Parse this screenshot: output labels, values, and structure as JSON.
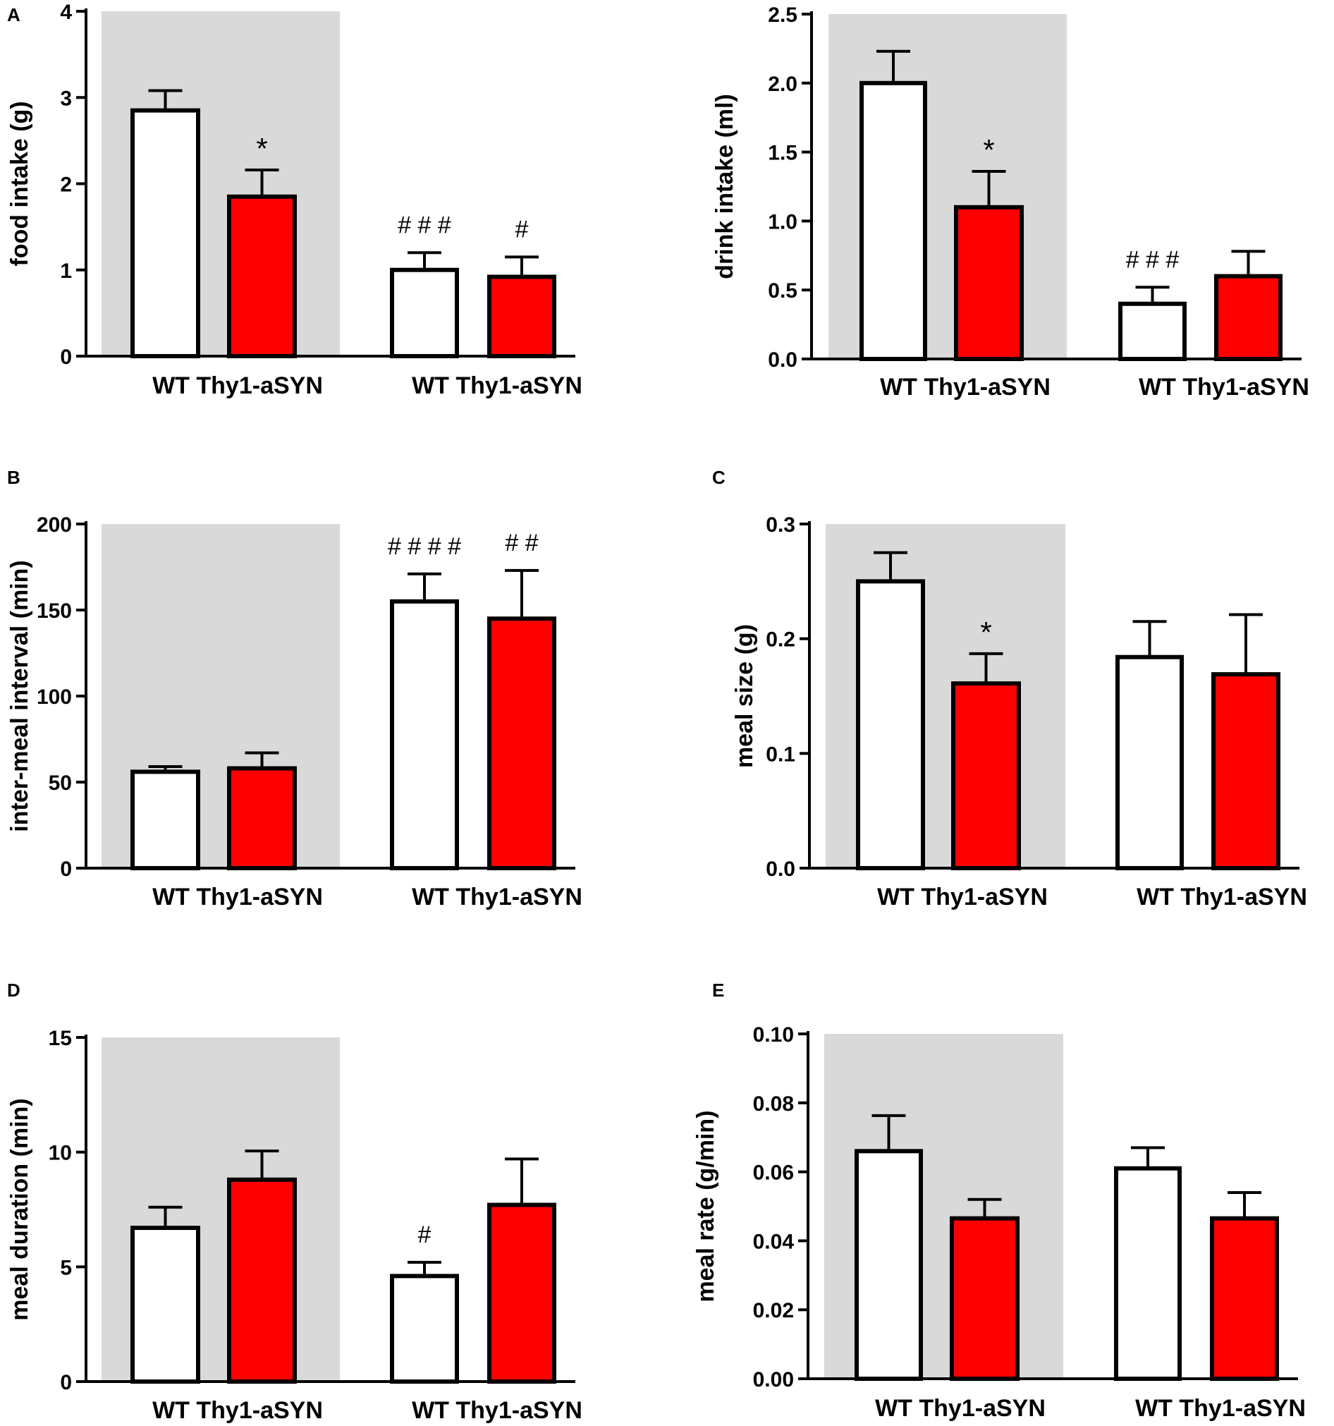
{
  "colors": {
    "wt_fill": "#ffffff",
    "thy1_fill": "#ff0000",
    "bar_stroke": "#000000",
    "shade": "#d9d9d9"
  },
  "chart_data": [
    {
      "panel": "A",
      "type": "bar",
      "ylabel": "food intake (g)",
      "ylim": [
        0,
        4
      ],
      "yticks": [
        "0",
        "1",
        "2",
        "3",
        "4"
      ],
      "ytick_values": [
        0,
        1,
        2,
        3,
        4
      ],
      "groups": [
        {
          "shaded": true,
          "categories": [
            "WT",
            "Thy1-aSYN"
          ],
          "values": [
            2.85,
            1.85
          ],
          "errors": [
            0.23,
            0.31
          ],
          "annotations": [
            "",
            "*"
          ]
        },
        {
          "shaded": false,
          "categories": [
            "WT",
            "Thy1-aSYN"
          ],
          "values": [
            1.0,
            0.92
          ],
          "errors": [
            0.2,
            0.23
          ],
          "annotations": [
            "# # #",
            "#"
          ]
        }
      ]
    },
    {
      "panel": "",
      "type": "bar",
      "ylabel": "drink intake (ml)",
      "ylim": [
        0,
        2.5
      ],
      "yticks": [
        "0.0",
        "0.5",
        "1.0",
        "1.5",
        "2.0",
        "2.5"
      ],
      "ytick_values": [
        0,
        0.5,
        1.0,
        1.5,
        2.0,
        2.5
      ],
      "groups": [
        {
          "shaded": true,
          "categories": [
            "WT",
            "Thy1-aSYN"
          ],
          "values": [
            2.0,
            1.1
          ],
          "errors": [
            0.23,
            0.26
          ],
          "annotations": [
            "",
            "*"
          ]
        },
        {
          "shaded": false,
          "categories": [
            "WT",
            "Thy1-aSYN"
          ],
          "values": [
            0.4,
            0.6
          ],
          "errors": [
            0.12,
            0.18
          ],
          "annotations": [
            "# # #",
            ""
          ]
        }
      ]
    },
    {
      "panel": "B",
      "type": "bar",
      "ylabel": "inter-meal interval (min)",
      "ylim": [
        0,
        200
      ],
      "yticks": [
        "0",
        "50",
        "100",
        "150",
        "200"
      ],
      "ytick_values": [
        0,
        50,
        100,
        150,
        200
      ],
      "groups": [
        {
          "shaded": true,
          "categories": [
            "WT",
            "Thy1-aSYN"
          ],
          "values": [
            56,
            58
          ],
          "errors": [
            3,
            9
          ],
          "annotations": [
            "",
            ""
          ]
        },
        {
          "shaded": false,
          "categories": [
            "WT",
            "Thy1-aSYN"
          ],
          "values": [
            155,
            145
          ],
          "errors": [
            16,
            28
          ],
          "annotations": [
            "# # # #",
            "# #"
          ]
        }
      ]
    },
    {
      "panel": "C",
      "type": "bar",
      "ylabel": "meal size (g)",
      "ylim": [
        0,
        0.3
      ],
      "yticks": [
        "0.0",
        "0.1",
        "0.2",
        "0.3"
      ],
      "ytick_values": [
        0,
        0.1,
        0.2,
        0.3
      ],
      "groups": [
        {
          "shaded": true,
          "categories": [
            "WT",
            "Thy1-aSYN"
          ],
          "values": [
            0.25,
            0.161
          ],
          "errors": [
            0.025,
            0.026
          ],
          "annotations": [
            "",
            "*"
          ]
        },
        {
          "shaded": false,
          "categories": [
            "WT",
            "Thy1-aSYN"
          ],
          "values": [
            0.184,
            0.169
          ],
          "errors": [
            0.031,
            0.052
          ],
          "annotations": [
            "",
            ""
          ]
        }
      ]
    },
    {
      "panel": "D",
      "type": "bar",
      "ylabel": "meal duration (min)",
      "ylim": [
        0,
        15
      ],
      "yticks": [
        "0",
        "5",
        "10",
        "15"
      ],
      "ytick_values": [
        0,
        5,
        10,
        15
      ],
      "groups": [
        {
          "shaded": true,
          "categories": [
            "WT",
            "Thy1-aSYN"
          ],
          "values": [
            6.7,
            8.8
          ],
          "errors": [
            0.9,
            1.25
          ],
          "annotations": [
            "",
            ""
          ]
        },
        {
          "shaded": false,
          "categories": [
            "WT",
            "Thy1-aSYN"
          ],
          "values": [
            4.6,
            7.7
          ],
          "errors": [
            0.6,
            2.0
          ],
          "annotations": [
            "#",
            ""
          ]
        }
      ]
    },
    {
      "panel": "E",
      "type": "bar",
      "ylabel": "meal rate (g/min)",
      "ylim": [
        0,
        0.1
      ],
      "yticks": [
        "0.00",
        "0.02",
        "0.04",
        "0.06",
        "0.08",
        "0.10"
      ],
      "ytick_values": [
        0,
        0.02,
        0.04,
        0.06,
        0.08,
        0.1
      ],
      "groups": [
        {
          "shaded": true,
          "categories": [
            "WT",
            "Thy1-aSYN"
          ],
          "values": [
            0.066,
            0.0465
          ],
          "errors": [
            0.0103,
            0.0055
          ],
          "annotations": [
            "",
            ""
          ]
        },
        {
          "shaded": false,
          "categories": [
            "WT",
            "Thy1-aSYN"
          ],
          "values": [
            0.061,
            0.0465
          ],
          "errors": [
            0.006,
            0.0075
          ],
          "annotations": [
            "",
            ""
          ]
        }
      ]
    }
  ]
}
